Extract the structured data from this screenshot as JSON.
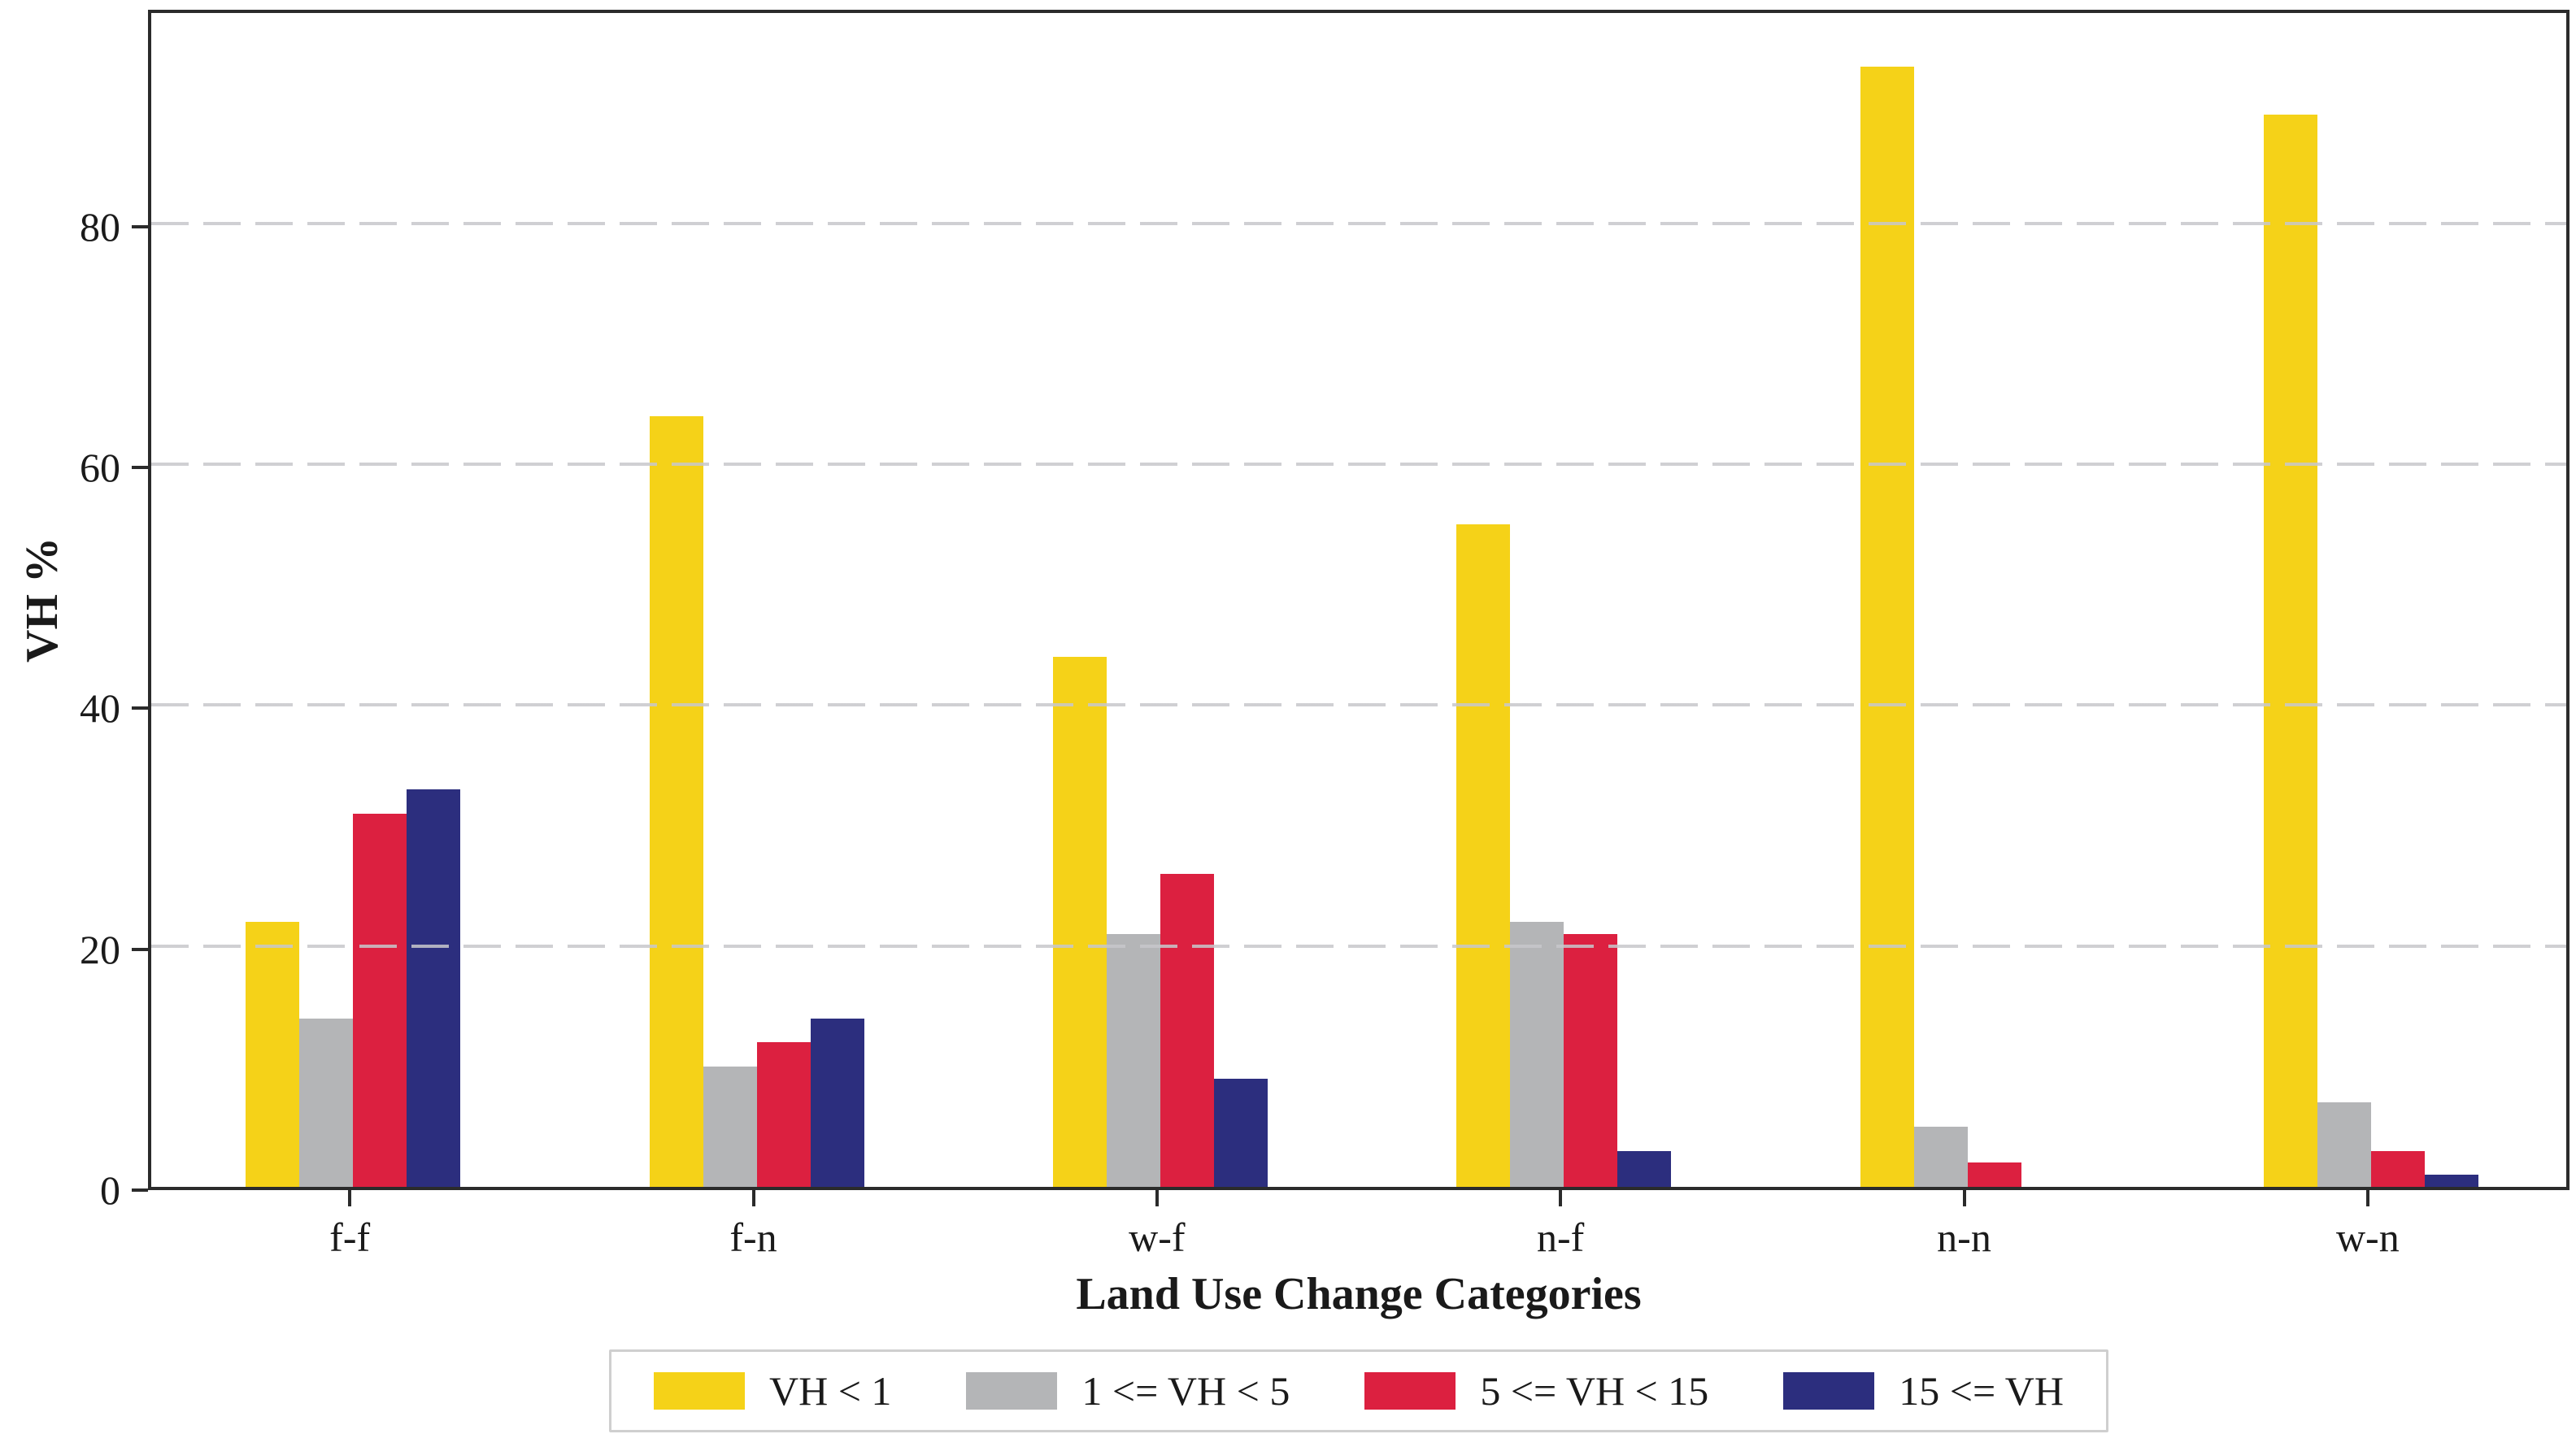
{
  "chart_data": {
    "type": "bar",
    "title": "",
    "xlabel": "Land Use Change Categories",
    "ylabel": "VH %",
    "categories": [
      "f-f",
      "f-n",
      "w-f",
      "n-f",
      "n-n",
      "w-n"
    ],
    "series": [
      {
        "name": "VH < 1",
        "color": "#F5D218",
        "values": [
          22,
          64,
          44,
          55,
          93,
          89
        ]
      },
      {
        "name": "1 <= VH < 5",
        "color": "#B4B5B7",
        "values": [
          14,
          10,
          21,
          22,
          5,
          7
        ]
      },
      {
        "name": "5 <= VH < 15",
        "color": "#DC2040",
        "values": [
          31,
          12,
          26,
          21,
          2,
          3
        ]
      },
      {
        "name": "15 <= VH",
        "color": "#2C2E7E",
        "values": [
          33,
          14,
          9,
          3,
          0,
          1
        ]
      }
    ],
    "ylim": [
      0,
      98
    ],
    "yticks": [
      0,
      20,
      40,
      60,
      80
    ],
    "grid": "horizontal-dashed, drawn over bars",
    "legend_position": "bottom center, horizontal row, boxed"
  },
  "colors": {
    "background": "#ffffff",
    "spine": "#2b2b2b",
    "grid": "#c7c7cb",
    "text": "#1a1a1a",
    "legend_border": "#cfcfcf"
  }
}
